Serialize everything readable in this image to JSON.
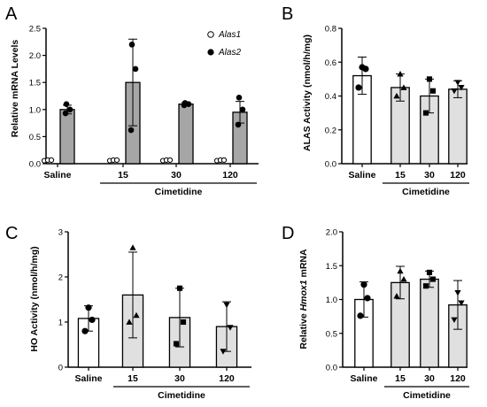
{
  "chart_data": [
    {
      "panel": "A",
      "type": "bar",
      "ylabel": "Relative mRNA Levels",
      "ylim": [
        0,
        2.5
      ],
      "yticks": [
        "0.0",
        "0.5",
        "1.0",
        "1.5",
        "2.0",
        "2.5"
      ],
      "categories": [
        "Saline",
        "15",
        "30",
        "120"
      ],
      "group_label": "Cimetidine",
      "legend": {
        "position": "top-right",
        "items": [
          "Alas1",
          "Alas2"
        ]
      },
      "series": [
        {
          "name": "Alas1",
          "values": [
            0.05,
            0.05,
            0.05,
            0.05
          ],
          "error": [
            0.0,
            0.0,
            0.0,
            0.0
          ],
          "points": [
            [
              0.04,
              0.05,
              0.05
            ],
            [
              0.04,
              0.05,
              0.05
            ],
            [
              0.04,
              0.05,
              0.05
            ],
            [
              0.04,
              0.05,
              0.05
            ]
          ],
          "fill": "#ffffff"
        },
        {
          "name": "Alas2",
          "values": [
            1.0,
            1.5,
            1.1,
            0.95
          ],
          "error": [
            0.08,
            0.8,
            0.03,
            0.2
          ],
          "points": [
            [
              0.93,
              1.0,
              1.1
            ],
            [
              0.62,
              1.75,
              2.2
            ],
            [
              1.08,
              1.1,
              1.12
            ],
            [
              0.72,
              1.0,
              1.22
            ]
          ],
          "fill": "#a6a6a6"
        }
      ]
    },
    {
      "panel": "B",
      "type": "bar",
      "ylabel": "ALAS Activity (nmol/h/mg)",
      "ylim": [
        0,
        0.8
      ],
      "yticks": [
        "0.0",
        "0.2",
        "0.4",
        "0.6",
        "0.8"
      ],
      "categories": [
        "Saline",
        "15",
        "30",
        "120"
      ],
      "group_label": "Cimetidine",
      "values": [
        0.52,
        0.45,
        0.4,
        0.44
      ],
      "error": [
        0.11,
        0.08,
        0.1,
        0.05
      ],
      "points": [
        [
          0.45,
          0.56,
          0.57
        ],
        [
          0.4,
          0.45,
          0.53
        ],
        [
          0.3,
          0.43,
          0.5
        ],
        [
          0.43,
          0.45,
          0.48
        ]
      ],
      "marker": [
        "circle",
        "triangle",
        "square",
        "triangle-down"
      ],
      "fill": [
        "#ffffff",
        "#e0e0e0",
        "#e0e0e0",
        "#e0e0e0"
      ]
    },
    {
      "panel": "C",
      "type": "bar",
      "ylabel": "HO Activity (nmol/h/mg)",
      "ylim": [
        0,
        3
      ],
      "yticks": [
        "0",
        "1",
        "2",
        "3"
      ],
      "categories": [
        "Saline",
        "15",
        "30",
        "120"
      ],
      "group_label": "Cimetidine",
      "values": [
        1.08,
        1.6,
        1.1,
        0.9
      ],
      "error": [
        0.28,
        0.95,
        0.65,
        0.55
      ],
      "points": [
        [
          0.8,
          1.05,
          1.32
        ],
        [
          1.0,
          1.15,
          2.65
        ],
        [
          0.52,
          1.0,
          1.75
        ],
        [
          0.35,
          0.88,
          1.38
        ]
      ],
      "marker": [
        "circle",
        "triangle",
        "square",
        "triangle-down"
      ],
      "fill": [
        "#ffffff",
        "#e0e0e0",
        "#e0e0e0",
        "#e0e0e0"
      ]
    },
    {
      "panel": "D",
      "type": "bar",
      "ylabel_prefix": "Relative ",
      "ylabel_gene": "Hmox1",
      "ylabel_suffix": " mRNA",
      "ylim": [
        0,
        2.0
      ],
      "yticks": [
        "0.0",
        "0.5",
        "1.0",
        "1.5",
        "2.0"
      ],
      "categories": [
        "Saline",
        "15",
        "30",
        "120"
      ],
      "group_label": "Cimetidine",
      "values": [
        1.0,
        1.25,
        1.3,
        0.92
      ],
      "error": [
        0.26,
        0.24,
        0.12,
        0.36
      ],
      "points": [
        [
          0.76,
          1.02,
          1.22
        ],
        [
          1.05,
          1.3,
          1.42
        ],
        [
          1.2,
          1.3,
          1.4
        ],
        [
          0.7,
          0.95,
          1.1
        ]
      ],
      "marker": [
        "circle",
        "triangle",
        "square",
        "triangle-down"
      ],
      "fill": [
        "#ffffff",
        "#e0e0e0",
        "#e0e0e0",
        "#e0e0e0"
      ]
    }
  ]
}
